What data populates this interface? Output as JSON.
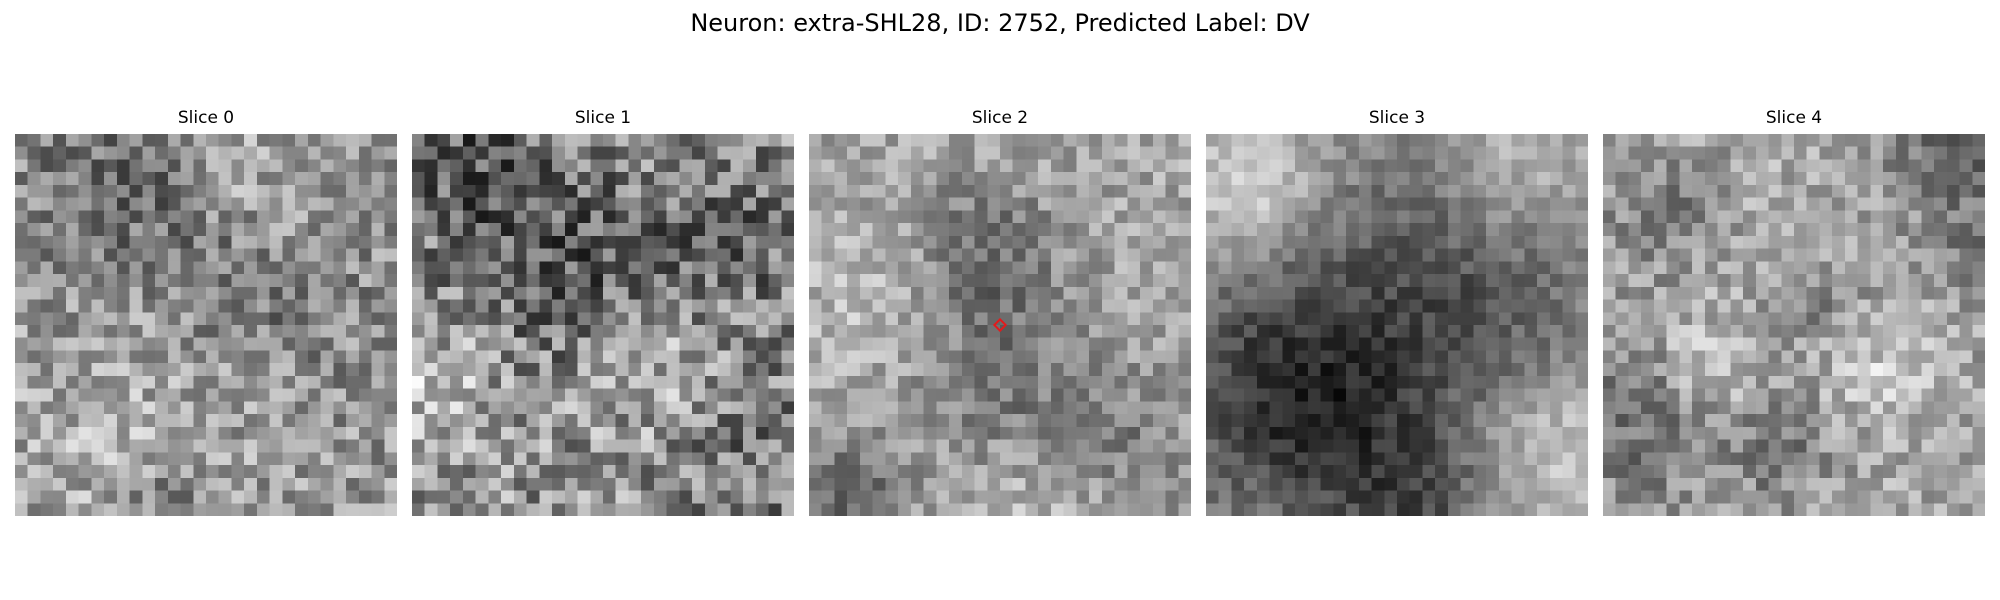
{
  "figure": {
    "title": "Neuron: extra-SHL28, ID: 2752, Predicted Label: DV"
  },
  "slices": [
    {
      "title": "Slice 0"
    },
    {
      "title": "Slice 1"
    },
    {
      "title": "Slice 2"
    },
    {
      "title": "Slice 3"
    },
    {
      "title": "Slice 4"
    }
  ],
  "colors": {
    "colormap": "gray",
    "marker": "#e31a1c"
  }
}
